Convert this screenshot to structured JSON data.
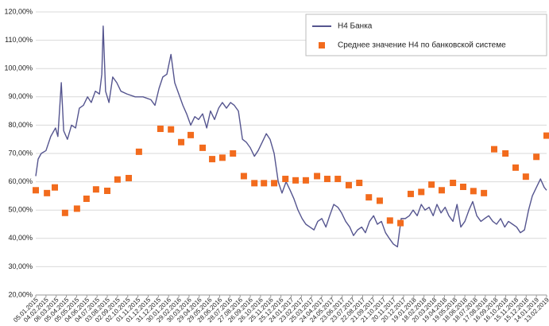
{
  "chart_data": {
    "type": "line",
    "xlim": [
      0,
      1500
    ],
    "xticks": [
      {
        "value": 0,
        "label": "05.01.2015"
      },
      {
        "value": 30,
        "label": "04.02.2015"
      },
      {
        "value": 60,
        "label": "06.03.2015"
      },
      {
        "value": 90,
        "label": "05.04.2015"
      },
      {
        "value": 120,
        "label": "05.05.2015"
      },
      {
        "value": 150,
        "label": "04.06.2015"
      },
      {
        "value": 180,
        "label": "04.07.2015"
      },
      {
        "value": 210,
        "label": "03.08.2015"
      },
      {
        "value": 240,
        "label": "02.09.2015"
      },
      {
        "value": 270,
        "label": "02.10.2015"
      },
      {
        "value": 300,
        "label": "01.11.2015"
      },
      {
        "value": 330,
        "label": "01.12.2015"
      },
      {
        "value": 360,
        "label": "31.12.2015"
      },
      {
        "value": 390,
        "label": "30.01.2016"
      },
      {
        "value": 420,
        "label": "29.02.2016"
      },
      {
        "value": 450,
        "label": "30.03.2016"
      },
      {
        "value": 480,
        "label": "29.04.2016"
      },
      {
        "value": 510,
        "label": "29.05.2016"
      },
      {
        "value": 540,
        "label": "28.06.2016"
      },
      {
        "value": 570,
        "label": "28.07.2016"
      },
      {
        "value": 600,
        "label": "27.08.2016"
      },
      {
        "value": 630,
        "label": "26.09.2016"
      },
      {
        "value": 660,
        "label": "26.10.2016"
      },
      {
        "value": 690,
        "label": "25.11.2016"
      },
      {
        "value": 720,
        "label": "25.12.2016"
      },
      {
        "value": 750,
        "label": "24.01.2017"
      },
      {
        "value": 780,
        "label": "23.02.2017"
      },
      {
        "value": 810,
        "label": "25.03.2017"
      },
      {
        "value": 840,
        "label": "24.04.2017"
      },
      {
        "value": 870,
        "label": "24.05.2017"
      },
      {
        "value": 900,
        "label": "23.06.2017"
      },
      {
        "value": 930,
        "label": "23.07.2017"
      },
      {
        "value": 960,
        "label": "22.08.2017"
      },
      {
        "value": 990,
        "label": "21.09.2017"
      },
      {
        "value": 1020,
        "label": "21.10.2017"
      },
      {
        "value": 1050,
        "label": "20.11.2017"
      },
      {
        "value": 1080,
        "label": "20.12.2017"
      },
      {
        "value": 1110,
        "label": "19.01.2018"
      },
      {
        "value": 1140,
        "label": "18.02.2018"
      },
      {
        "value": 1170,
        "label": "20.03.2018"
      },
      {
        "value": 1200,
        "label": "19.04.2018"
      },
      {
        "value": 1230,
        "label": "19.05.2018"
      },
      {
        "value": 1260,
        "label": "18.06.2018"
      },
      {
        "value": 1290,
        "label": "18.07.2018"
      },
      {
        "value": 1320,
        "label": "17.08.2018"
      },
      {
        "value": 1350,
        "label": "16.09.2018"
      },
      {
        "value": 1380,
        "label": "16.10.2018"
      },
      {
        "value": 1410,
        "label": "15.11.2018"
      },
      {
        "value": 1440,
        "label": "15.12.2018"
      },
      {
        "value": 1470,
        "label": "14.01.2019"
      },
      {
        "value": 1500,
        "label": "13.02.2019"
      }
    ],
    "ylim": [
      20,
      120
    ],
    "yticks": [
      {
        "value": 20,
        "label": "20,00%"
      },
      {
        "value": 30,
        "label": "30,00%"
      },
      {
        "value": 40,
        "label": "40,00%"
      },
      {
        "value": 50,
        "label": "50,00%"
      },
      {
        "value": 60,
        "label": "60,00%"
      },
      {
        "value": 70,
        "label": "70,00%"
      },
      {
        "value": 80,
        "label": "80,00%"
      },
      {
        "value": 90,
        "label": "90,00%"
      },
      {
        "value": 100,
        "label": "100,00%"
      },
      {
        "value": 110,
        "label": "110,00%"
      },
      {
        "value": 120,
        "label": "120,00%"
      }
    ],
    "grid": true,
    "legend": "top-right",
    "series": [
      {
        "name": "Н4 Банка",
        "color": "#55558f",
        "style": "line",
        "x": [
          0,
          7,
          16,
          30,
          44,
          58,
          65,
          75,
          82,
          93,
          105,
          117,
          128,
          140,
          152,
          163,
          175,
          187,
          194,
          198,
          205,
          215,
          226,
          238,
          250,
          268,
          292,
          315,
          338,
          350,
          362,
          373,
          385,
          397,
          408,
          420,
          432,
          443,
          455,
          467,
          478,
          490,
          502,
          513,
          525,
          537,
          548,
          560,
          572,
          583,
          595,
          607,
          618,
          630,
          642,
          653,
          665,
          677,
          688,
          700,
          712,
          723,
          735,
          747,
          758,
          770,
          782,
          793,
          805,
          817,
          828,
          840,
          852,
          863,
          875,
          887,
          898,
          910,
          922,
          933,
          945,
          957,
          968,
          980,
          992,
          1003,
          1015,
          1027,
          1038,
          1050,
          1062,
          1073,
          1085,
          1097,
          1108,
          1120,
          1132,
          1143,
          1155,
          1167,
          1178,
          1190,
          1202,
          1213,
          1225,
          1237,
          1248,
          1260,
          1272,
          1283,
          1295,
          1307,
          1318,
          1330,
          1342,
          1353,
          1365,
          1377,
          1388,
          1400,
          1412,
          1423,
          1435,
          1447,
          1458,
          1470,
          1482,
          1493,
          1500
        ],
        "values": [
          62,
          68,
          70,
          71,
          76,
          79,
          76,
          95,
          78,
          75,
          80,
          79,
          86,
          87,
          90,
          88,
          92,
          91,
          98,
          115,
          92,
          88,
          97,
          95,
          92,
          91,
          90,
          90,
          89,
          87,
          93,
          97,
          98,
          105,
          95,
          91,
          87,
          84,
          80,
          83,
          82,
          84,
          79,
          85,
          82,
          86,
          88,
          86,
          88,
          87,
          85,
          75,
          74,
          72,
          69,
          71,
          74,
          77,
          75,
          70,
          60,
          56,
          60,
          57,
          54,
          50,
          47,
          45,
          44,
          43,
          46,
          47,
          44,
          48,
          52,
          51,
          49,
          46,
          44,
          41,
          43,
          44,
          42,
          46,
          48,
          45,
          46,
          42,
          40,
          38,
          37,
          47,
          47,
          48,
          50,
          48,
          52,
          50,
          51,
          48,
          52,
          49,
          51,
          48,
          46,
          52,
          44,
          46,
          50,
          53,
          48,
          46,
          47,
          48,
          46,
          45,
          47,
          44,
          46,
          45,
          44,
          42,
          43,
          50,
          55,
          58,
          61,
          58,
          57
        ]
      },
      {
        "name": "Среднее значение Н4 по банковской системе",
        "color": "#f26b1d",
        "style": "markers",
        "x": [
          0,
          33,
          56,
          86,
          121,
          149,
          177,
          210,
          240,
          273,
          303,
          366,
          397,
          427,
          455,
          490,
          518,
          548,
          579,
          611,
          642,
          670,
          700,
          733,
          763,
          793,
          826,
          856,
          887,
          919,
          950,
          978,
          1010,
          1040,
          1071,
          1101,
          1132,
          1162,
          1192,
          1225,
          1255,
          1285,
          1316,
          1346,
          1379,
          1409,
          1439,
          1470,
          1500
        ],
        "values": [
          57,
          56,
          58,
          49,
          50.5,
          54,
          57.3,
          56.8,
          60.8,
          61.3,
          70.6,
          78.7,
          78.5,
          74,
          76.5,
          72,
          68,
          68.5,
          70,
          62,
          59.5,
          59.5,
          59.5,
          61,
          60.5,
          60.5,
          62,
          61,
          61,
          58.8,
          59.6,
          54.5,
          53.3,
          46.3,
          45.4,
          55.7,
          56.4,
          59,
          57,
          59.6,
          58.2,
          56.7,
          56,
          71.5,
          70,
          65,
          61.8,
          68.8,
          76.3
        ]
      }
    ]
  }
}
